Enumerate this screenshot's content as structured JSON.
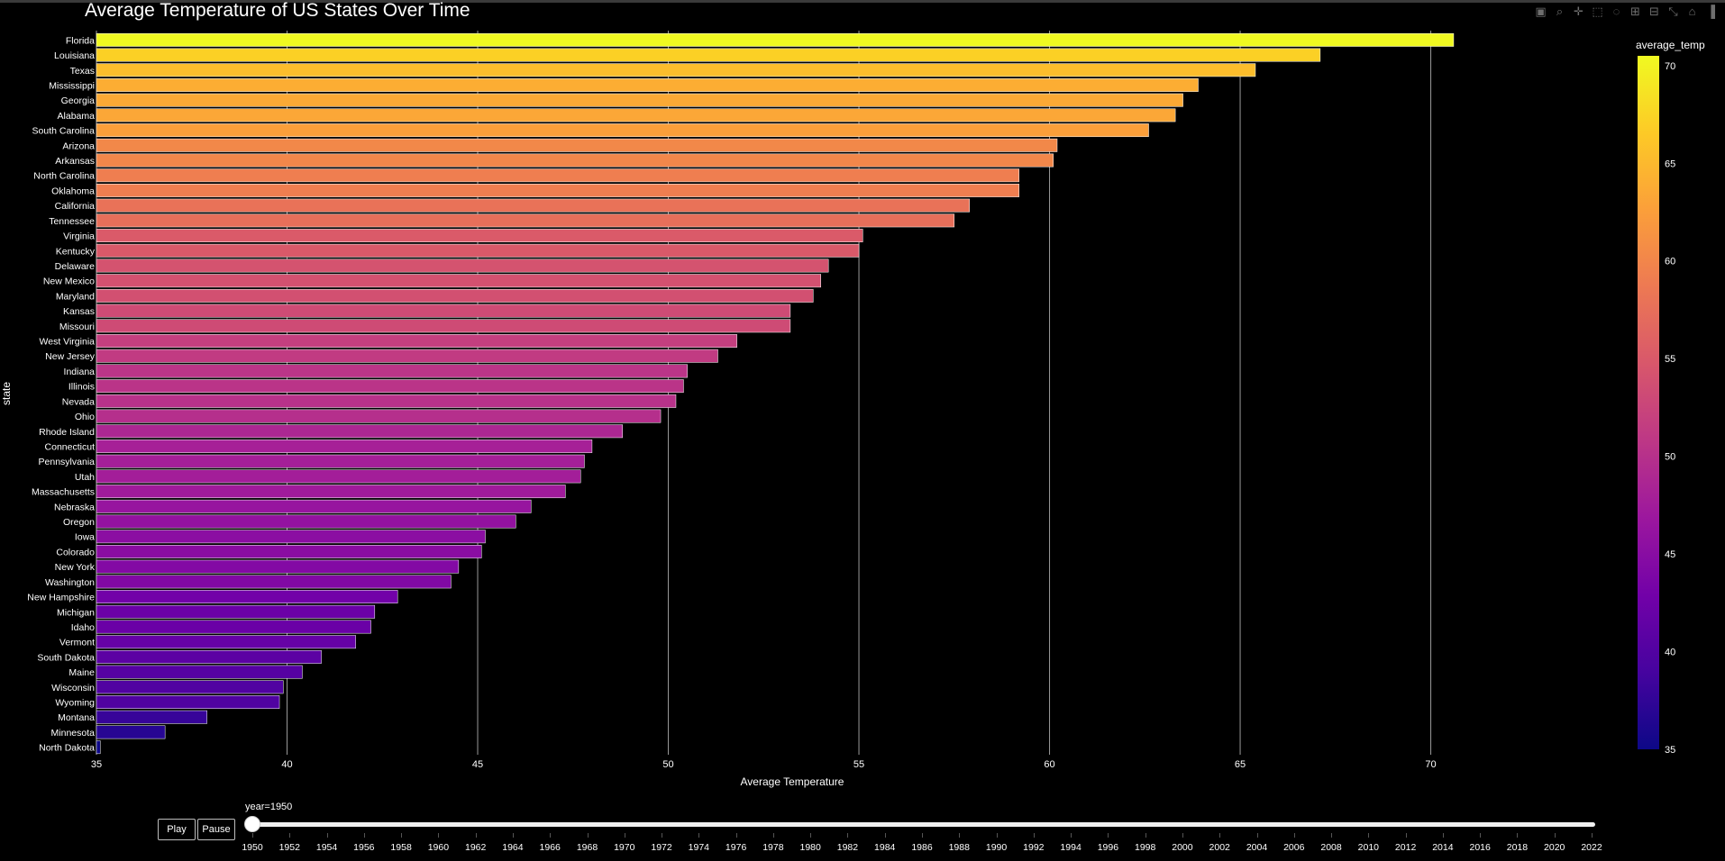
{
  "colors": {
    "background": "#000000",
    "colorscale": [
      "#0d0887",
      "#46039f",
      "#7201a8",
      "#9c179e",
      "#bd3786",
      "#d8576b",
      "#ed7953",
      "#fb9f3a",
      "#fdca26",
      "#f0f921"
    ]
  },
  "modebar": {
    "icons": [
      "camera-icon",
      "zoom-icon",
      "pan-icon",
      "box-select-icon",
      "lasso-icon",
      "zoom-in-icon",
      "zoom-out-icon",
      "autoscale-icon",
      "reset-axes-icon",
      "plotly-logo-icon"
    ]
  },
  "chart_data": {
    "type": "bar",
    "orientation": "horizontal",
    "title": "Average Temperature of US States Over Time",
    "xlabel": "Average Temperature",
    "ylabel": "state",
    "xlim": [
      35,
      71.5
    ],
    "x_ticks": [
      35,
      40,
      45,
      50,
      55,
      60,
      65,
      70
    ],
    "grid": true,
    "colorbar": {
      "title": "average_temp",
      "range": [
        35,
        70.5
      ],
      "ticks": [
        35,
        40,
        45,
        50,
        55,
        60,
        65,
        70
      ]
    },
    "categories": [
      "Florida",
      "Louisiana",
      "Texas",
      "Mississippi",
      "Georgia",
      "Alabama",
      "South Carolina",
      "Arizona",
      "Arkansas",
      "North Carolina",
      "Oklahoma",
      "California",
      "Tennessee",
      "Virginia",
      "Kentucky",
      "Delaware",
      "New Mexico",
      "Maryland",
      "Kansas",
      "Missouri",
      "West Virginia",
      "New Jersey",
      "Indiana",
      "Illinois",
      "Nevada",
      "Ohio",
      "Rhode Island",
      "Connecticut",
      "Pennsylvania",
      "Utah",
      "Massachusetts",
      "Nebraska",
      "Oregon",
      "Iowa",
      "Colorado",
      "New York",
      "Washington",
      "New Hampshire",
      "Michigan",
      "Idaho",
      "Vermont",
      "South Dakota",
      "Maine",
      "Wisconsin",
      "Wyoming",
      "Montana",
      "Minnesota",
      "North Dakota"
    ],
    "values": [
      70.6,
      67.1,
      65.4,
      63.9,
      63.5,
      63.3,
      62.6,
      60.2,
      60.1,
      59.2,
      59.2,
      57.9,
      57.5,
      55.1,
      55.0,
      54.2,
      54.0,
      53.8,
      53.2,
      53.2,
      51.8,
      51.3,
      50.5,
      50.4,
      50.2,
      49.8,
      48.8,
      48.0,
      47.8,
      47.7,
      47.3,
      46.4,
      46.0,
      45.2,
      45.1,
      44.5,
      44.3,
      42.9,
      42.3,
      42.2,
      41.8,
      40.9,
      40.4,
      39.9,
      39.8,
      37.9,
      36.8,
      35.1
    ]
  },
  "animation": {
    "play_label": "Play",
    "pause_label": "Pause",
    "slider_current": "year=1950",
    "years": [
      "1950",
      "1952",
      "1954",
      "1956",
      "1958",
      "1960",
      "1962",
      "1964",
      "1966",
      "1968",
      "1970",
      "1972",
      "1974",
      "1976",
      "1978",
      "1980",
      "1982",
      "1984",
      "1986",
      "1988",
      "1990",
      "1992",
      "1994",
      "1996",
      "1998",
      "2000",
      "2002",
      "2004",
      "2006",
      "2008",
      "2010",
      "2012",
      "2014",
      "2016",
      "2018",
      "2020",
      "2022"
    ],
    "selected_index": 0
  }
}
